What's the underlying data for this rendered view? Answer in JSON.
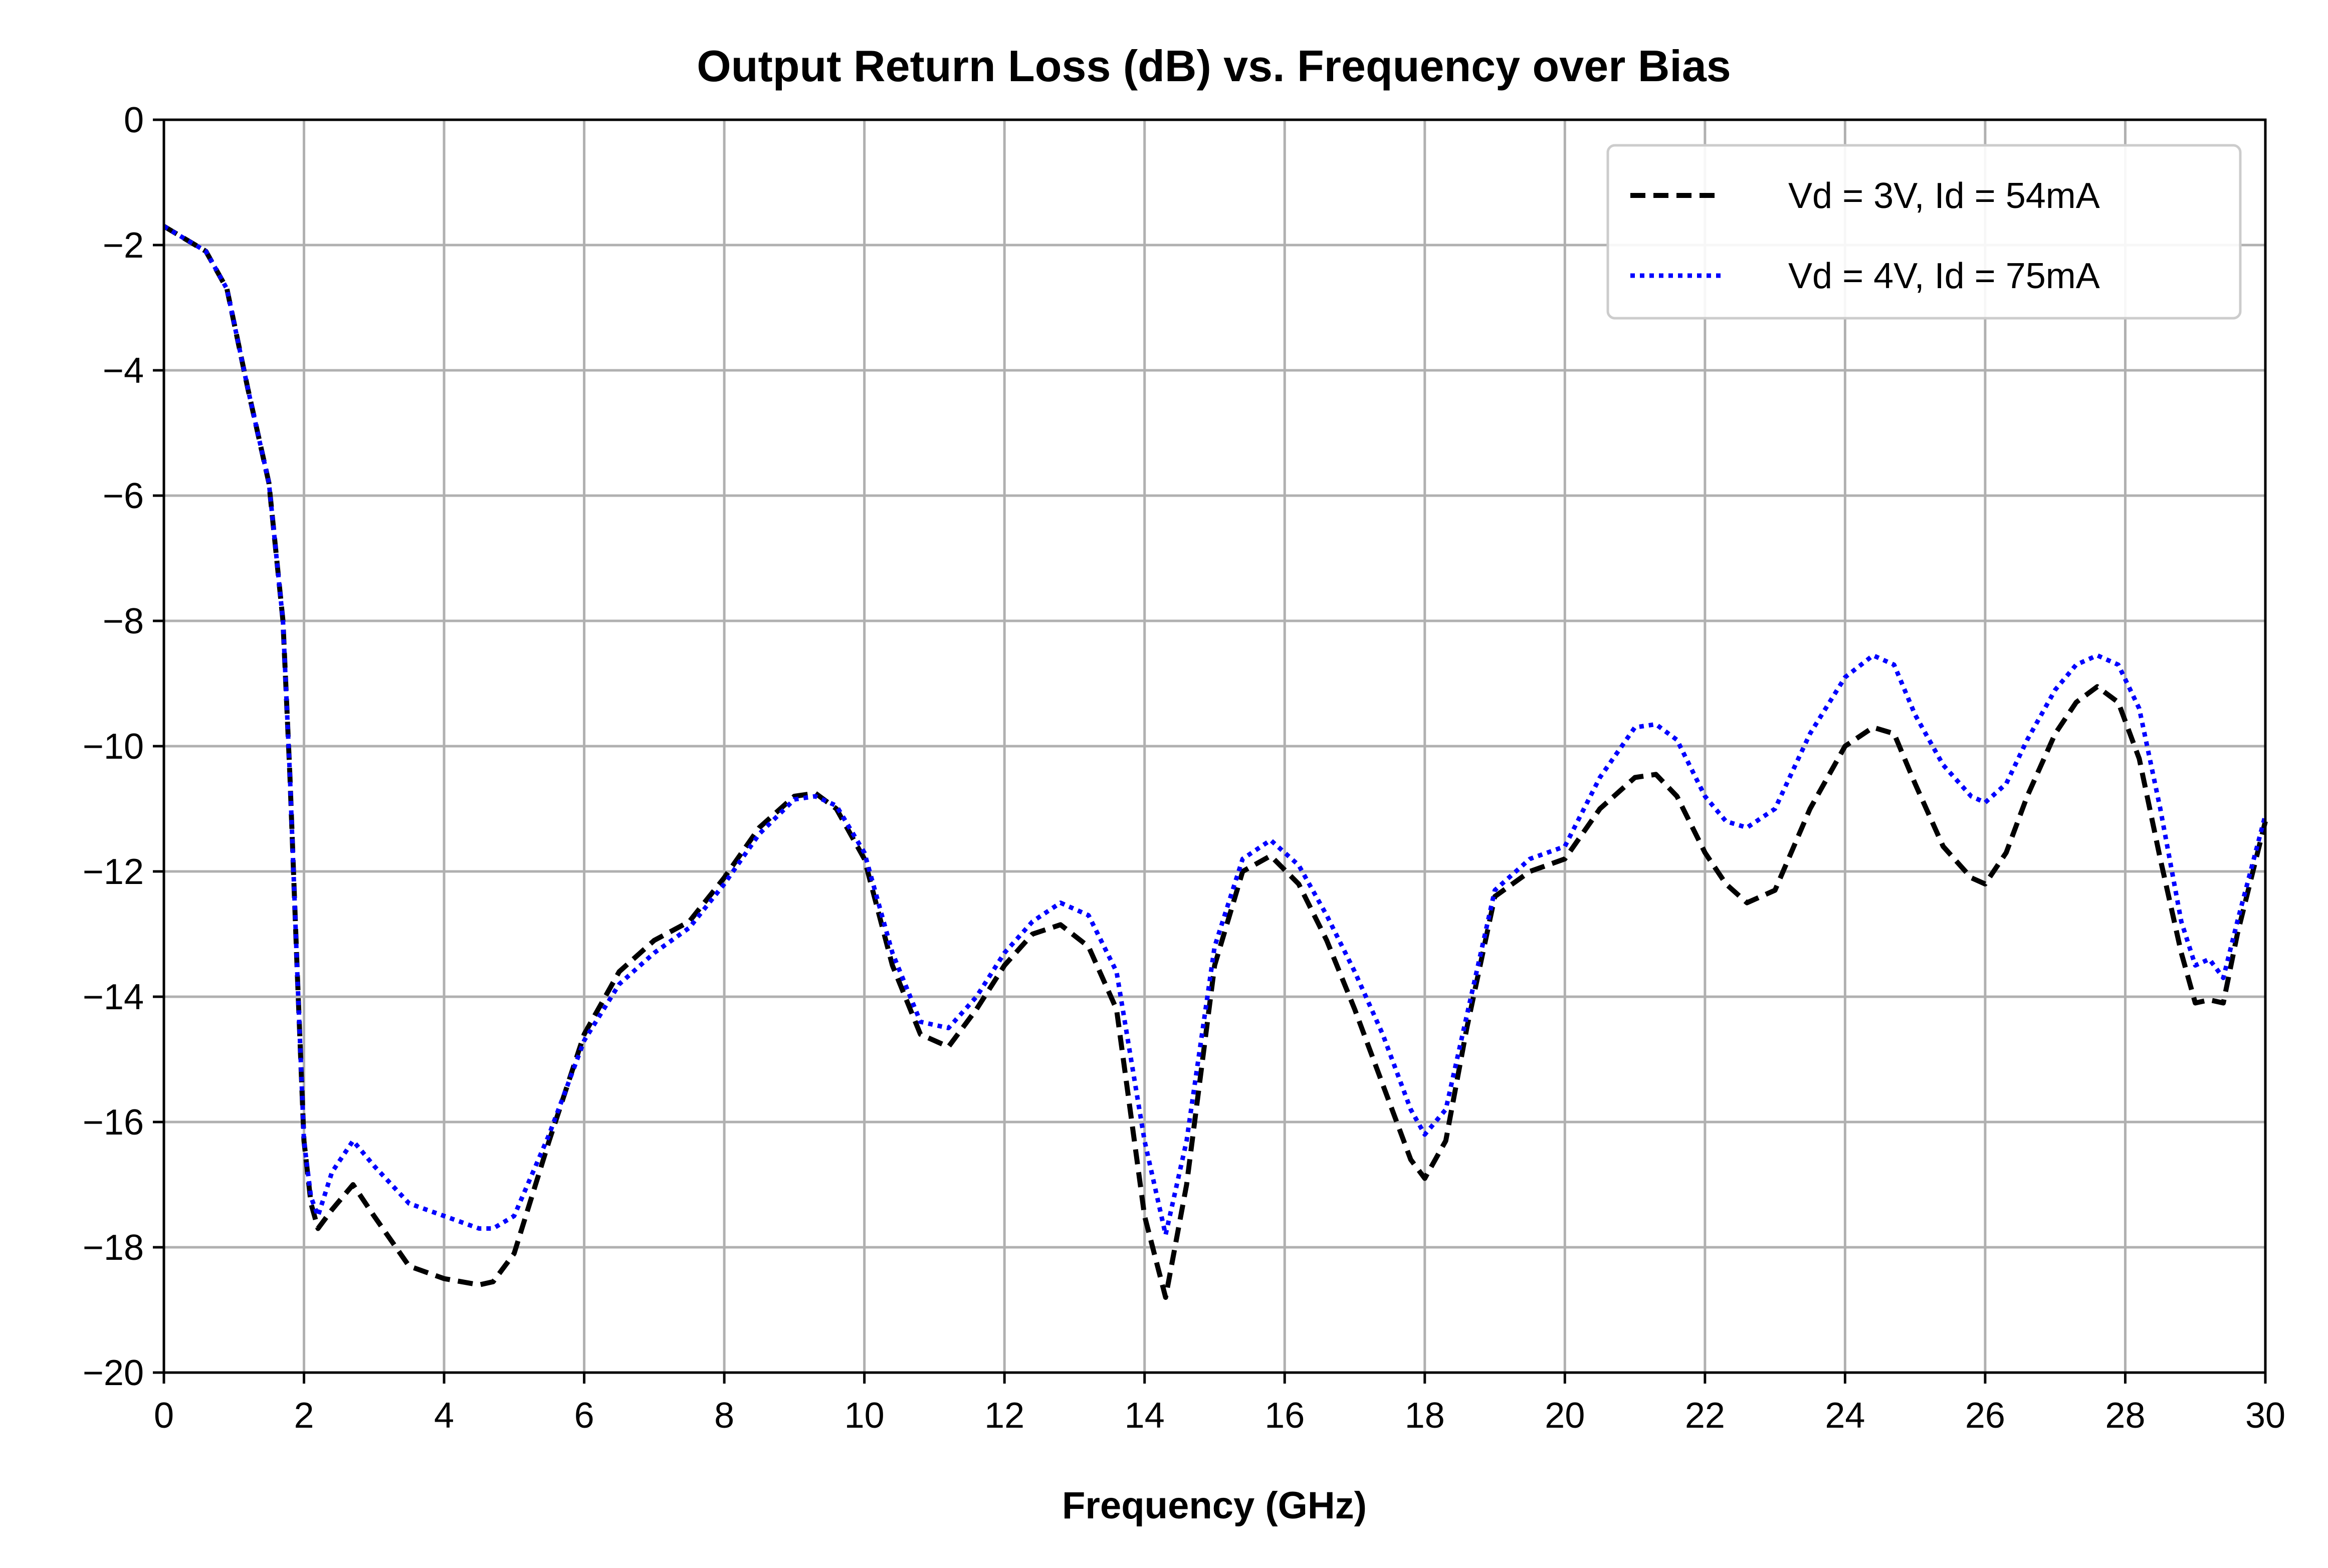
{
  "chart_data": {
    "type": "line",
    "title": "Output Return Loss (dB) vs. Frequency over Bias",
    "xlabel": "Frequency (GHz)",
    "ylabel": "",
    "xlim": [
      0,
      30
    ],
    "ylim": [
      -20,
      0
    ],
    "xticks": [
      0,
      2,
      4,
      6,
      8,
      10,
      12,
      14,
      16,
      18,
      20,
      22,
      24,
      26,
      28,
      30
    ],
    "yticks": [
      0,
      -2,
      -4,
      -6,
      -8,
      -10,
      -12,
      -14,
      -16,
      -18,
      -20
    ],
    "ytick_labels": [
      "0",
      "−2",
      "−4",
      "−6",
      "−8",
      "−10",
      "−12",
      "−14",
      "−16",
      "−18",
      "−20"
    ],
    "grid": true,
    "legend_position": "top-right",
    "series": [
      {
        "name": "Vd = 3V, Id = 54mA",
        "color": "#000000",
        "line_style": "dashed",
        "x": [
          0,
          0.3,
          0.6,
          0.9,
          1.2,
          1.5,
          1.7,
          1.8,
          1.9,
          2.0,
          2.1,
          2.2,
          2.4,
          2.7,
          3.0,
          3.5,
          4.0,
          4.5,
          4.7,
          5.0,
          5.5,
          6.0,
          6.5,
          7.0,
          7.5,
          8.0,
          8.5,
          9.0,
          9.3,
          9.6,
          10.0,
          10.4,
          10.8,
          11.2,
          11.6,
          12.0,
          12.4,
          12.8,
          13.2,
          13.6,
          14.0,
          14.3,
          14.6,
          15.0,
          15.4,
          15.8,
          16.2,
          16.6,
          17.0,
          17.4,
          17.8,
          18.0,
          18.3,
          18.6,
          19.0,
          19.5,
          20.0,
          20.5,
          21.0,
          21.3,
          21.6,
          22.0,
          22.3,
          22.6,
          23.0,
          23.5,
          24.0,
          24.4,
          24.7,
          25.0,
          25.4,
          25.8,
          26.0,
          26.3,
          26.6,
          27.0,
          27.3,
          27.6,
          27.9,
          28.2,
          28.5,
          28.8,
          29.0,
          29.2,
          29.4,
          29.6,
          30.0
        ],
        "y": [
          -1.7,
          -1.9,
          -2.1,
          -2.7,
          -4.3,
          -5.8,
          -8.0,
          -10.5,
          -13.5,
          -16.3,
          -17.3,
          -17.7,
          -17.4,
          -17.0,
          -17.5,
          -18.3,
          -18.5,
          -18.6,
          -18.55,
          -18.1,
          -16.3,
          -14.6,
          -13.6,
          -13.1,
          -12.8,
          -12.1,
          -11.3,
          -10.8,
          -10.75,
          -11.0,
          -11.8,
          -13.5,
          -14.6,
          -14.8,
          -14.2,
          -13.5,
          -13.0,
          -12.85,
          -13.2,
          -14.2,
          -17.5,
          -18.8,
          -17.0,
          -13.5,
          -12.0,
          -11.75,
          -12.2,
          -13.1,
          -14.2,
          -15.4,
          -16.6,
          -16.9,
          -16.3,
          -14.5,
          -12.4,
          -12.0,
          -11.8,
          -11.0,
          -10.5,
          -10.45,
          -10.8,
          -11.7,
          -12.2,
          -12.5,
          -12.3,
          -11.0,
          -10.0,
          -9.7,
          -9.8,
          -10.6,
          -11.6,
          -12.1,
          -12.2,
          -11.7,
          -10.8,
          -9.8,
          -9.3,
          -9.05,
          -9.3,
          -10.2,
          -11.8,
          -13.3,
          -14.1,
          -14.05,
          -14.1,
          -13.0,
          -11.2
        ]
      },
      {
        "name": "Vd = 4V, Id = 75mA",
        "color": "#0000ff",
        "line_style": "dotted",
        "x": [
          0,
          0.3,
          0.6,
          0.9,
          1.2,
          1.5,
          1.7,
          1.8,
          1.9,
          2.0,
          2.1,
          2.2,
          2.4,
          2.7,
          3.0,
          3.5,
          4.0,
          4.5,
          4.7,
          5.0,
          5.5,
          6.0,
          6.5,
          7.0,
          7.5,
          8.0,
          8.5,
          9.0,
          9.3,
          9.6,
          10.0,
          10.4,
          10.8,
          11.2,
          11.6,
          12.0,
          12.4,
          12.8,
          13.2,
          13.6,
          14.0,
          14.3,
          14.6,
          15.0,
          15.4,
          15.8,
          16.2,
          16.6,
          17.0,
          17.4,
          17.8,
          18.0,
          18.3,
          18.6,
          19.0,
          19.5,
          20.0,
          20.5,
          21.0,
          21.3,
          21.6,
          22.0,
          22.3,
          22.6,
          23.0,
          23.5,
          24.0,
          24.4,
          24.7,
          25.0,
          25.4,
          25.8,
          26.0,
          26.3,
          26.6,
          27.0,
          27.3,
          27.6,
          27.9,
          28.2,
          28.5,
          28.8,
          29.0,
          29.2,
          29.4,
          29.6,
          30.0
        ],
        "y": [
          -1.7,
          -1.9,
          -2.1,
          -2.7,
          -4.3,
          -5.8,
          -8.0,
          -10.5,
          -13.5,
          -16.3,
          -17.2,
          -17.5,
          -16.8,
          -16.3,
          -16.7,
          -17.3,
          -17.5,
          -17.7,
          -17.7,
          -17.5,
          -16.2,
          -14.7,
          -13.8,
          -13.3,
          -12.9,
          -12.2,
          -11.4,
          -10.85,
          -10.8,
          -10.95,
          -11.7,
          -13.3,
          -14.4,
          -14.5,
          -14.0,
          -13.3,
          -12.8,
          -12.5,
          -12.7,
          -13.6,
          -16.3,
          -17.8,
          -16.3,
          -13.2,
          -11.8,
          -11.5,
          -11.9,
          -12.7,
          -13.6,
          -14.6,
          -15.8,
          -16.2,
          -15.8,
          -14.3,
          -12.3,
          -11.8,
          -11.6,
          -10.5,
          -9.7,
          -9.65,
          -9.9,
          -10.8,
          -11.2,
          -11.3,
          -11.0,
          -9.8,
          -8.9,
          -8.55,
          -8.7,
          -9.5,
          -10.3,
          -10.8,
          -10.9,
          -10.6,
          -9.9,
          -9.1,
          -8.7,
          -8.55,
          -8.7,
          -9.4,
          -11.0,
          -12.8,
          -13.5,
          -13.4,
          -13.7,
          -12.8,
          -11.1
        ]
      }
    ]
  }
}
